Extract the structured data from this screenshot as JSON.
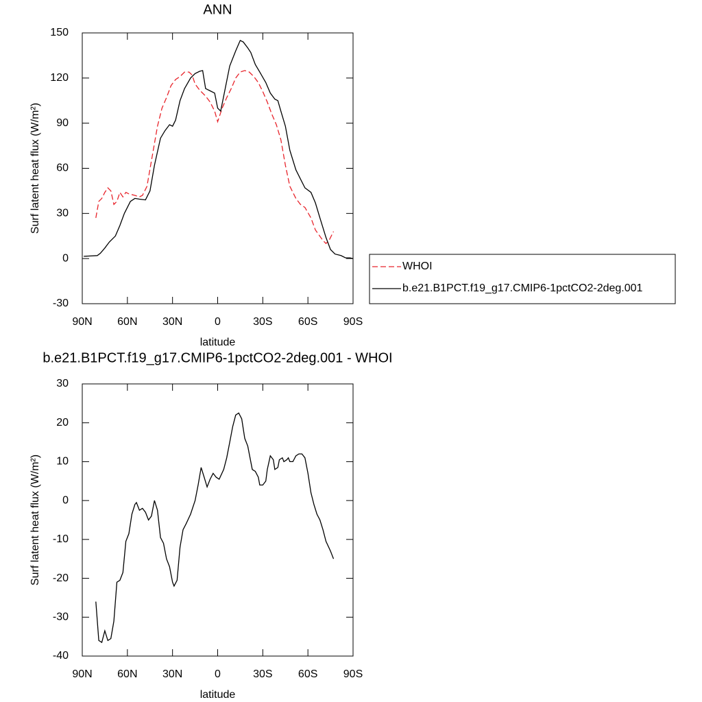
{
  "chart_data": [
    {
      "type": "line",
      "title": "ANN",
      "xlabel": "latitude",
      "ylabel": "Surf latent heat flux (W/m²)",
      "xlim": [
        90,
        -90
      ],
      "xticks": [
        {
          "value": 90,
          "label": "90N"
        },
        {
          "value": 60,
          "label": "60N"
        },
        {
          "value": 30,
          "label": "30N"
        },
        0,
        {
          "value": -30,
          "label": "30S"
        },
        {
          "value": -60,
          "label": "60S"
        },
        {
          "value": -90,
          "label": "90S"
        }
      ],
      "ylim": [
        -30,
        150
      ],
      "yticks": [
        -30,
        0,
        30,
        60,
        90,
        120,
        150
      ],
      "legend": "right",
      "series": [
        {
          "name": "WHOI",
          "color": "#e8232a",
          "dash": true,
          "x": [
            81,
            79,
            77,
            75,
            73,
            71,
            69,
            67,
            65,
            63,
            61,
            59,
            55,
            52,
            50,
            47,
            44,
            40,
            37,
            34,
            31,
            28,
            25,
            22,
            19,
            17,
            15,
            12,
            8,
            5,
            2,
            0,
            -3,
            -6,
            -9,
            -12,
            -15,
            -18,
            -21,
            -24,
            -27,
            -30,
            -33,
            -36,
            -39,
            -42,
            -45,
            -48,
            -52,
            -55,
            -58,
            -62,
            -65,
            -70,
            -72,
            -74,
            -77
          ],
          "values": [
            27,
            38,
            40,
            44,
            47,
            45,
            36,
            38,
            44,
            41,
            44,
            43,
            42,
            41,
            42,
            48,
            65,
            88,
            100,
            107,
            115,
            119,
            121,
            124,
            124,
            122,
            116,
            112,
            108,
            104,
            98,
            91,
            100,
            107,
            113,
            120,
            124,
            125,
            124,
            121,
            117,
            111,
            104,
            96,
            89,
            79,
            62,
            48,
            40,
            36,
            34,
            27,
            19,
            12,
            10,
            12,
            18
          ]
        },
        {
          "name": "b.e21.B1PCT.f19_g17.CMIP6-1pctCO2-2deg.001",
          "color": "#000000",
          "dash": false,
          "x": [
            89,
            80,
            78,
            75,
            72,
            68,
            65,
            62,
            58,
            55,
            52,
            48,
            45,
            42,
            38,
            35,
            32,
            30,
            28,
            25,
            22,
            18,
            15,
            12,
            10,
            8,
            5,
            2,
            0,
            -2,
            -5,
            -8,
            -12,
            -15,
            -17,
            -20,
            -22,
            -25,
            -28,
            -32,
            -35,
            -38,
            -40,
            -42,
            -45,
            -48,
            -52,
            -55,
            -58,
            -62,
            -65,
            -68,
            -72,
            -75,
            -78,
            -82,
            -85,
            -88,
            -90
          ],
          "values": [
            1.5,
            2,
            3.5,
            7,
            11,
            15,
            22,
            30,
            38,
            40,
            39.5,
            39,
            45,
            62,
            80,
            85,
            89,
            88,
            92,
            105,
            113,
            120,
            123,
            124.5,
            125,
            113,
            111.5,
            110,
            100,
            98,
            113,
            128,
            138,
            145,
            144,
            140,
            137,
            129,
            124,
            117,
            110,
            106,
            105,
            98,
            88,
            72,
            59,
            53,
            47,
            44,
            37,
            27,
            14,
            6,
            3,
            2,
            0.5,
            0.5,
            0
          ]
        }
      ]
    },
    {
      "type": "line",
      "title": "b.e21.B1PCT.f19_g17.CMIP6-1pctCO2-2deg.001 - WHOI",
      "xlabel": "latitude",
      "ylabel": "Surf latent heat flux (W/m²)",
      "xlim": [
        90,
        -90
      ],
      "xticks": [
        {
          "value": 90,
          "label": "90N"
        },
        {
          "value": 60,
          "label": "60N"
        },
        {
          "value": 30,
          "label": "30N"
        },
        0,
        {
          "value": -30,
          "label": "30S"
        },
        {
          "value": -60,
          "label": "60S"
        },
        {
          "value": -90,
          "label": "90S"
        }
      ],
      "ylim": [
        -40,
        30
      ],
      "yticks": [
        -40,
        -30,
        -20,
        -10,
        0,
        10,
        20,
        30
      ],
      "series": [
        {
          "color": "#000000",
          "dash": false,
          "x": [
            81,
            79,
            77,
            75,
            73,
            71,
            69,
            67,
            65,
            63,
            61,
            59,
            57,
            55,
            54,
            52,
            50,
            48,
            46,
            44,
            42,
            40,
            38,
            36,
            34,
            32,
            30,
            29,
            27,
            25,
            23,
            21,
            18,
            15,
            13,
            11,
            9,
            7,
            5,
            3,
            1,
            -1,
            -4,
            -6,
            -8,
            -10,
            -12,
            -14,
            -16,
            -18,
            -20,
            -23,
            -25,
            -27,
            -28,
            -30,
            -32,
            -33,
            -35,
            -37,
            -38,
            -40,
            -41,
            -43,
            -44,
            -46,
            -47,
            -48,
            -50,
            -52,
            -54,
            -56,
            -58,
            -60,
            -62,
            -64,
            -66,
            -68,
            -70,
            -72,
            -75,
            -77
          ],
          "values": [
            -26,
            -36,
            -36.5,
            -33.5,
            -36,
            -35.5,
            -31,
            -21,
            -20.5,
            -18.5,
            -10.5,
            -8.5,
            -3.5,
            -1,
            -0.5,
            -2.5,
            -2,
            -3,
            -5,
            -4,
            0,
            -2.5,
            -9.5,
            -11,
            -15,
            -17,
            -21,
            -22,
            -20.5,
            -12,
            -7.5,
            -6,
            -3.5,
            0,
            4,
            8.5,
            6,
            3.5,
            5.5,
            7,
            6,
            5.5,
            8,
            11,
            15,
            19,
            22,
            22.5,
            21,
            16,
            14,
            8,
            7.5,
            6,
            4,
            4,
            5,
            8,
            11.5,
            10.5,
            8,
            8.5,
            10.5,
            11,
            10,
            10.5,
            11,
            10,
            10,
            11.5,
            12,
            12,
            11,
            7,
            2,
            -1,
            -3.5,
            -5,
            -7.5,
            -10.5,
            -13,
            -15
          ]
        }
      ]
    }
  ]
}
